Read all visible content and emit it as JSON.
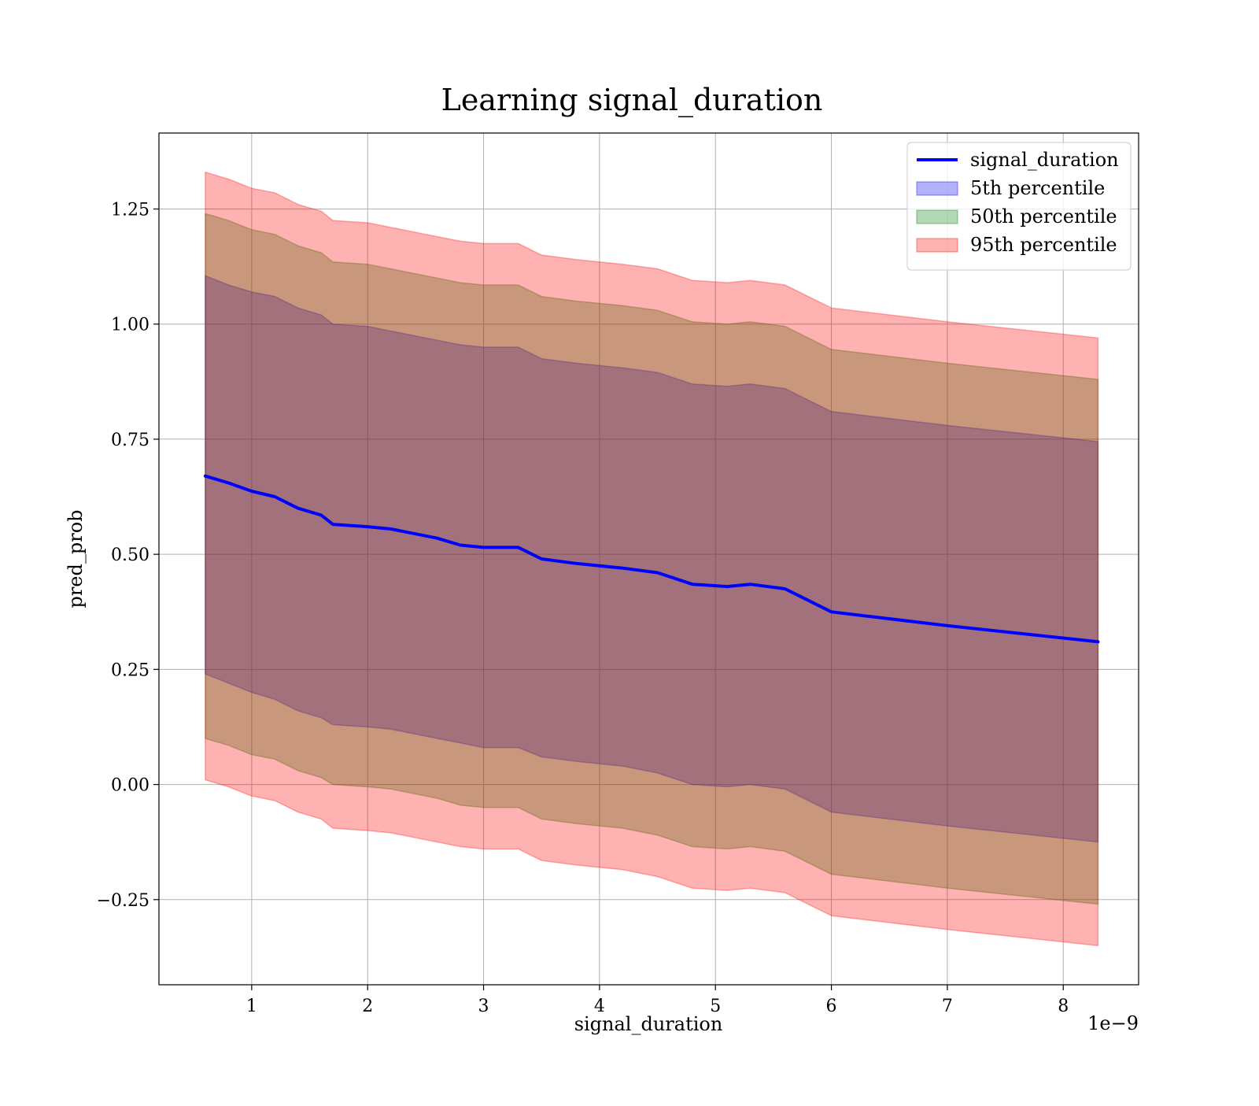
{
  "chart_data": {
    "type": "area",
    "title": "Learning signal_duration",
    "xlabel": "signal_duration",
    "ylabel": "pred_prob",
    "x_offset_text": "1e−9",
    "xlim": [
      0.2,
      8.65
    ],
    "ylim": [
      -0.435,
      1.415
    ],
    "x_ticks": [
      1,
      2,
      3,
      4,
      5,
      6,
      7,
      8
    ],
    "x_tick_labels": [
      "1",
      "2",
      "3",
      "4",
      "5",
      "6",
      "7",
      "8"
    ],
    "y_ticks": [
      -0.25,
      0.0,
      0.25,
      0.5,
      0.75,
      1.0,
      1.25
    ],
    "y_tick_labels": [
      "−0.25",
      "0.00",
      "0.25",
      "0.50",
      "0.75",
      "1.00",
      "1.25"
    ],
    "grid": true,
    "legend_position": "top-right",
    "x": [
      0.6,
      0.8,
      1.0,
      1.2,
      1.4,
      1.6,
      1.7,
      2.0,
      2.2,
      2.4,
      2.6,
      2.8,
      3.0,
      3.3,
      3.5,
      3.8,
      4.0,
      4.2,
      4.5,
      4.8,
      5.1,
      5.3,
      5.6,
      6.0,
      7.0,
      8.3
    ],
    "series": [
      {
        "name": "signal_duration",
        "kind": "line",
        "color": "#0000ff",
        "values": [
          0.67,
          0.655,
          0.637,
          0.625,
          0.6,
          0.585,
          0.565,
          0.56,
          0.555,
          0.545,
          0.535,
          0.52,
          0.515,
          0.515,
          0.49,
          0.48,
          0.475,
          0.47,
          0.46,
          0.435,
          0.43,
          0.435,
          0.425,
          0.375,
          0.345,
          0.31
        ]
      },
      {
        "name": "5th percentile",
        "kind": "band",
        "color": "#0000ff",
        "lower": [
          0.24,
          0.22,
          0.2,
          0.185,
          0.16,
          0.145,
          0.13,
          0.125,
          0.12,
          0.11,
          0.1,
          0.09,
          0.08,
          0.08,
          0.06,
          0.05,
          0.045,
          0.04,
          0.025,
          0.0,
          -0.005,
          0.0,
          -0.01,
          -0.06,
          -0.09,
          -0.125
        ],
        "upper": [
          1.105,
          1.085,
          1.07,
          1.06,
          1.035,
          1.02,
          1.0,
          0.995,
          0.985,
          0.975,
          0.965,
          0.955,
          0.95,
          0.95,
          0.925,
          0.915,
          0.91,
          0.905,
          0.895,
          0.87,
          0.865,
          0.87,
          0.86,
          0.81,
          0.78,
          0.745
        ]
      },
      {
        "name": "50th percentile",
        "kind": "band",
        "color": "#008000",
        "lower": [
          0.1,
          0.085,
          0.065,
          0.055,
          0.03,
          0.015,
          0.0,
          -0.005,
          -0.01,
          -0.02,
          -0.03,
          -0.045,
          -0.05,
          -0.05,
          -0.075,
          -0.085,
          -0.09,
          -0.095,
          -0.11,
          -0.135,
          -0.14,
          -0.135,
          -0.145,
          -0.195,
          -0.225,
          -0.26
        ],
        "upper": [
          1.24,
          1.225,
          1.205,
          1.195,
          1.17,
          1.155,
          1.135,
          1.13,
          1.12,
          1.11,
          1.1,
          1.09,
          1.085,
          1.085,
          1.06,
          1.05,
          1.045,
          1.04,
          1.03,
          1.005,
          1.0,
          1.005,
          0.995,
          0.945,
          0.915,
          0.88
        ]
      },
      {
        "name": "95th percentile",
        "kind": "band",
        "color": "#ff0000",
        "lower": [
          0.01,
          -0.005,
          -0.025,
          -0.035,
          -0.06,
          -0.075,
          -0.095,
          -0.1,
          -0.105,
          -0.115,
          -0.125,
          -0.135,
          -0.14,
          -0.14,
          -0.165,
          -0.175,
          -0.18,
          -0.185,
          -0.2,
          -0.225,
          -0.23,
          -0.225,
          -0.235,
          -0.285,
          -0.315,
          -0.35
        ],
        "upper": [
          1.33,
          1.315,
          1.295,
          1.285,
          1.26,
          1.245,
          1.225,
          1.22,
          1.21,
          1.2,
          1.19,
          1.18,
          1.175,
          1.175,
          1.15,
          1.14,
          1.135,
          1.13,
          1.12,
          1.095,
          1.09,
          1.095,
          1.085,
          1.035,
          1.005,
          0.97
        ]
      }
    ]
  }
}
